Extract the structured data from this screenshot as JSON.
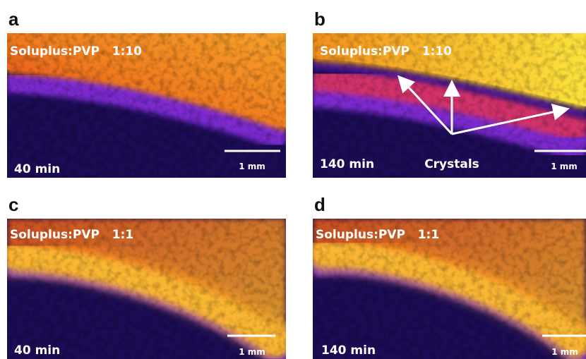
{
  "panels": [
    {
      "letter": "a",
      "sample": "Soluplus:PVP   1:10",
      "time": "40 min",
      "scale_bar": "1 mm"
    },
    {
      "letter": "b",
      "sample": "Soluplus:PVP   1:10",
      "time": "140 min",
      "scale_bar": "1 mm",
      "annotation": "Crystals"
    },
    {
      "letter": "c",
      "sample": "Soluplus:PVP   1:1",
      "time": "40 min",
      "scale_bar": "1 mm"
    },
    {
      "letter": "d",
      "sample": "Soluplus:PVP   1:1",
      "time": "140 min",
      "scale_bar": "1 mm"
    }
  ]
}
